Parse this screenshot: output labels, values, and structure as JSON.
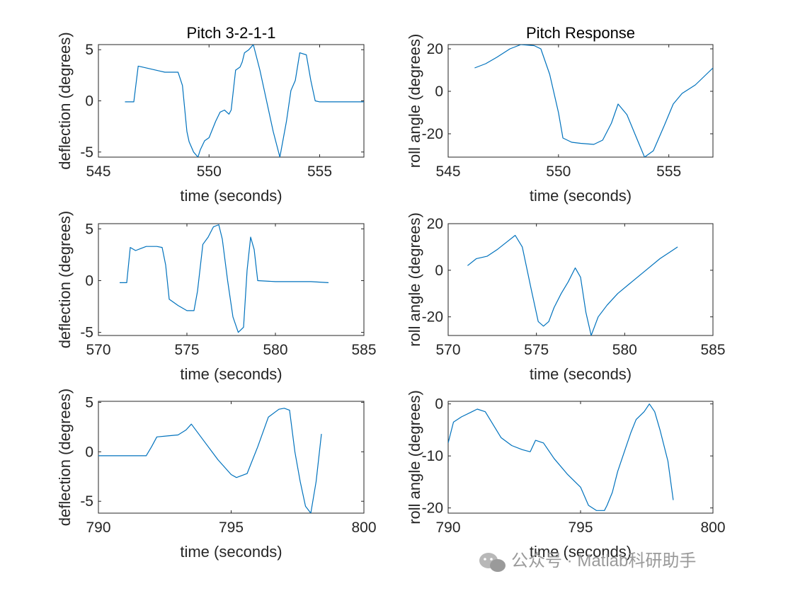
{
  "colors": {
    "line": "#0072BD",
    "axes": "#262626",
    "watermark": "#9a9a9a"
  },
  "watermark": {
    "icon": "wechat-icon",
    "text": "公众号 · Matlab科研助手"
  },
  "chart_data": [
    {
      "type": "line",
      "title": "Pitch 3-2-1-1",
      "xlabel": "time (seconds)",
      "ylabel": "deflection (degrees)",
      "xlim": [
        545,
        557
      ],
      "ylim": [
        -5.5,
        5.5
      ],
      "xticks": [
        545,
        550,
        555
      ],
      "yticks": [
        -5,
        0,
        5
      ],
      "series": [
        {
          "name": "deflection",
          "x": [
            546.2,
            546.6,
            546.8,
            547.0,
            547.4,
            547.8,
            548.0,
            548.3,
            548.6,
            548.8,
            549.0,
            549.1,
            549.3,
            549.5,
            549.6,
            549.8,
            550.0,
            550.3,
            550.5,
            550.7,
            550.9,
            551.0,
            551.2,
            551.4,
            551.5,
            551.6,
            551.8,
            552.0,
            552.3,
            552.6,
            552.9,
            553.2,
            553.5,
            553.7,
            553.9,
            554.1,
            554.4,
            554.6,
            554.8,
            555.0,
            556.0,
            557.0
          ],
          "y": [
            -0.1,
            -0.1,
            3.4,
            3.3,
            3.1,
            2.9,
            2.8,
            2.8,
            2.8,
            1.5,
            -3.0,
            -4.0,
            -5.0,
            -5.5,
            -4.8,
            -3.9,
            -3.6,
            -2.0,
            -1.1,
            -0.9,
            -1.3,
            -0.9,
            3.0,
            3.3,
            3.8,
            4.7,
            5.0,
            5.5,
            3.0,
            0.0,
            -3.0,
            -5.5,
            -2.0,
            1.0,
            2.0,
            4.7,
            4.5,
            2.0,
            0.0,
            -0.1,
            -0.1,
            -0.1
          ]
        }
      ]
    },
    {
      "type": "line",
      "title": "Pitch Response",
      "xlabel": "time (seconds)",
      "ylabel": "roll angle (degrees)",
      "xlim": [
        545,
        557
      ],
      "ylim": [
        -31,
        22
      ],
      "xticks": [
        545,
        550,
        555
      ],
      "yticks": [
        -20,
        0,
        20
      ],
      "series": [
        {
          "name": "roll",
          "x": [
            546.2,
            546.7,
            547.2,
            547.8,
            548.3,
            548.9,
            549.2,
            549.6,
            550.0,
            550.2,
            550.6,
            551.0,
            551.6,
            552.0,
            552.4,
            552.7,
            553.1,
            553.5,
            553.9,
            554.3,
            554.8,
            555.2,
            555.6,
            556.2,
            556.8,
            557.0
          ],
          "y": [
            11,
            13,
            16,
            20,
            22,
            21.5,
            20,
            8,
            -10,
            -22,
            -24,
            -24.5,
            -25,
            -23,
            -15,
            -6,
            -11,
            -21,
            -31,
            -28,
            -16,
            -6,
            -1,
            3,
            9,
            11
          ]
        }
      ]
    },
    {
      "type": "line",
      "title": "",
      "xlabel": "time (seconds)",
      "ylabel": "deflection (degrees)",
      "xlim": [
        570,
        585
      ],
      "ylim": [
        -5.3,
        5.5
      ],
      "xticks": [
        570,
        575,
        580,
        585
      ],
      "yticks": [
        -5,
        0,
        5
      ],
      "series": [
        {
          "name": "deflection",
          "x": [
            571.2,
            571.6,
            571.8,
            572.1,
            572.4,
            572.7,
            573.0,
            573.3,
            573.6,
            573.8,
            574.0,
            574.5,
            575.0,
            575.4,
            575.6,
            575.9,
            576.2,
            576.5,
            576.8,
            577.0,
            577.3,
            577.6,
            577.9,
            578.2,
            578.4,
            578.6,
            578.8,
            579.0,
            580.0,
            581.0,
            582.0,
            583.0
          ],
          "y": [
            -0.2,
            -0.2,
            3.2,
            2.9,
            3.1,
            3.3,
            3.3,
            3.3,
            3.2,
            1.5,
            -1.8,
            -2.4,
            -2.9,
            -2.9,
            -1.0,
            3.5,
            4.2,
            5.2,
            5.4,
            4.0,
            0.0,
            -3.5,
            -5.0,
            -4.5,
            1.0,
            4.2,
            3.0,
            0.0,
            -0.1,
            -0.1,
            -0.1,
            -0.2
          ]
        }
      ]
    },
    {
      "type": "line",
      "title": "",
      "xlabel": "time (seconds)",
      "ylabel": "roll angle (degrees)",
      "xlim": [
        570,
        585
      ],
      "ylim": [
        -28,
        20
      ],
      "xticks": [
        570,
        575,
        580,
        585
      ],
      "yticks": [
        -20,
        0,
        20
      ],
      "series": [
        {
          "name": "roll",
          "x": [
            571.1,
            571.6,
            572.2,
            572.8,
            573.3,
            573.8,
            574.2,
            574.7,
            575.1,
            575.4,
            575.7,
            576.0,
            576.4,
            576.8,
            577.2,
            577.5,
            577.8,
            578.1,
            578.5,
            579.0,
            579.6,
            580.4,
            581.2,
            582.0,
            582.6,
            583.0
          ],
          "y": [
            2,
            5,
            6,
            9,
            12,
            15,
            10,
            -8,
            -22,
            -24,
            -22,
            -16,
            -10,
            -5,
            1,
            -3,
            -18,
            -28,
            -20,
            -15,
            -10,
            -5,
            0,
            5,
            8,
            10
          ]
        }
      ]
    },
    {
      "type": "line",
      "title": "",
      "xlabel": "time (seconds)",
      "ylabel": "deflection (degrees)",
      "xlim": [
        790,
        800
      ],
      "ylim": [
        -6.2,
        5.1
      ],
      "xticks": [
        790,
        795,
        800
      ],
      "yticks": [
        -5,
        0,
        5
      ],
      "series": [
        {
          "name": "deflection",
          "x": [
            790.0,
            791.0,
            791.8,
            792.0,
            792.2,
            792.6,
            793.0,
            793.3,
            793.5,
            794.0,
            794.5,
            795.0,
            795.2,
            795.6,
            796.0,
            796.4,
            796.8,
            797.0,
            797.2,
            797.4,
            797.6,
            797.8,
            798.0,
            798.2,
            798.4
          ],
          "y": [
            -0.4,
            -0.4,
            -0.4,
            0.5,
            1.5,
            1.6,
            1.7,
            2.2,
            2.8,
            1.0,
            -0.8,
            -2.3,
            -2.6,
            -2.2,
            0.5,
            3.5,
            4.3,
            4.4,
            4.2,
            0.0,
            -3.0,
            -5.5,
            -6.2,
            -3.0,
            1.8
          ]
        }
      ]
    },
    {
      "type": "line",
      "title": "",
      "xlabel": "time (seconds)",
      "ylabel": "roll angle (degrees)",
      "xlim": [
        790,
        800
      ],
      "ylim": [
        -21,
        0.5
      ],
      "xticks": [
        790,
        795,
        800
      ],
      "yticks": [
        -20,
        -10,
        0
      ],
      "series": [
        {
          "name": "roll",
          "x": [
            790.0,
            790.2,
            790.5,
            790.9,
            791.1,
            791.4,
            791.7,
            792.0,
            792.4,
            792.8,
            793.1,
            793.3,
            793.6,
            794.0,
            794.5,
            795.0,
            795.3,
            795.6,
            795.9,
            796.0,
            796.2,
            796.4,
            796.7,
            796.9,
            797.1,
            797.4,
            797.6,
            797.8,
            798.0,
            798.3,
            798.5
          ],
          "y": [
            -7.5,
            -3.5,
            -2.5,
            -1.5,
            -1.0,
            -1.5,
            -4.0,
            -6.5,
            -8.0,
            -8.8,
            -9.2,
            -7.0,
            -7.5,
            -10.5,
            -13.5,
            -16.0,
            -19.5,
            -20.5,
            -20.5,
            -19.5,
            -17.0,
            -13.0,
            -8.5,
            -5.5,
            -3.0,
            -1.5,
            0.0,
            -1.5,
            -5.0,
            -11.0,
            -18.5
          ]
        }
      ]
    }
  ]
}
